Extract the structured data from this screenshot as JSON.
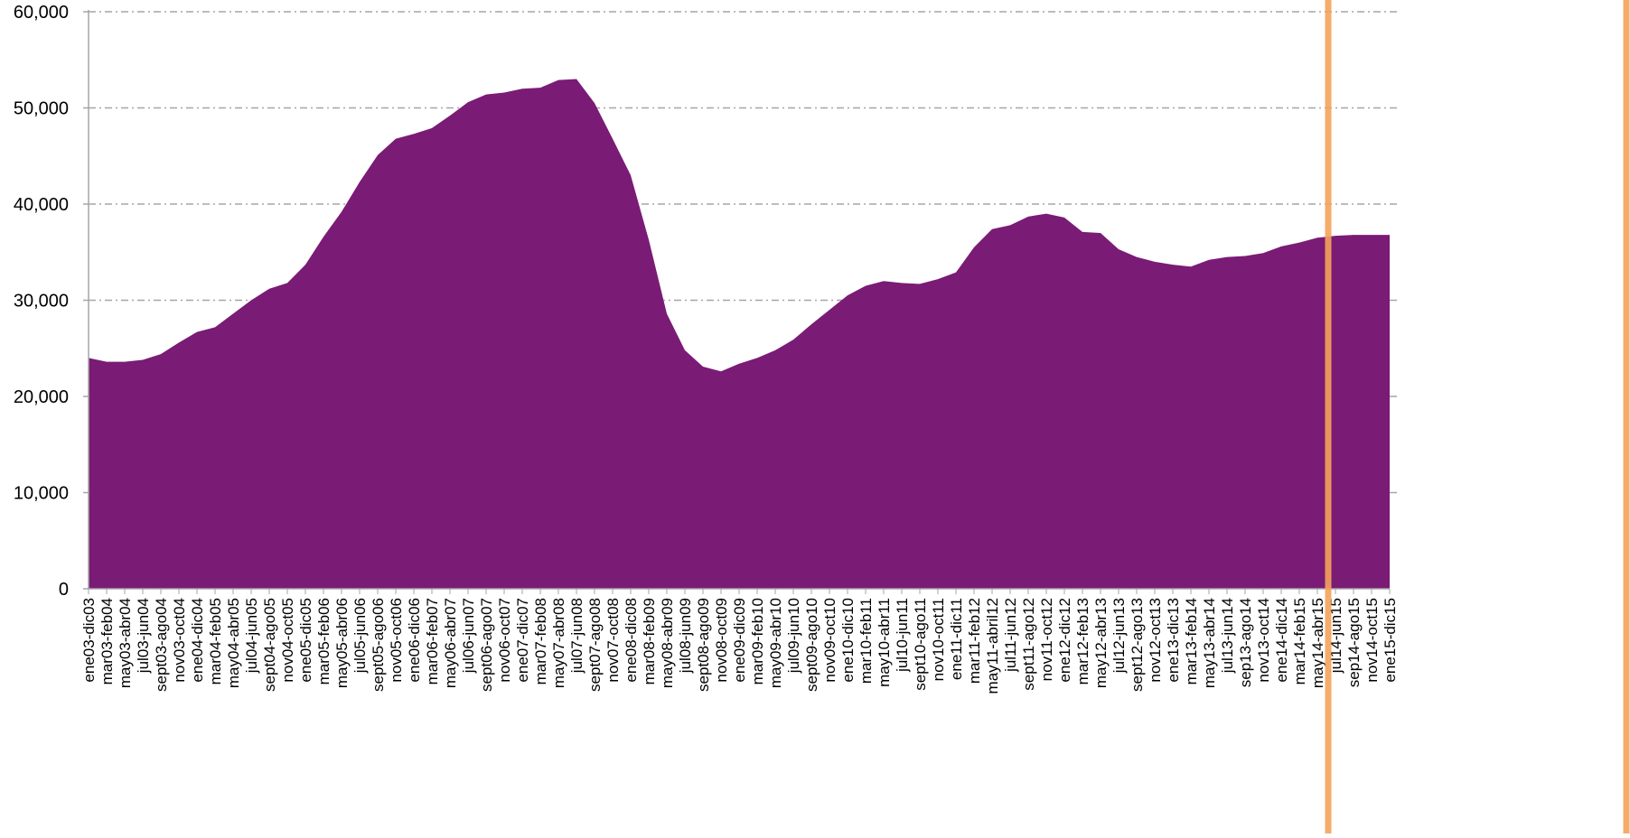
{
  "chart_data": {
    "type": "area",
    "title": "",
    "xlabel": "",
    "ylabel": "",
    "ylim": [
      0,
      60000
    ],
    "grid": true,
    "legend": "none",
    "y_ticks": [
      0,
      10000,
      20000,
      30000,
      40000,
      50000,
      60000
    ],
    "y_tick_labels": [
      "0",
      "10,000",
      "20,000",
      "30,000",
      "40,000",
      "50,000",
      "60,000"
    ],
    "colors": {
      "area": "#7a1b76",
      "gridline": "#a6a6a6",
      "axis": "#a6a6a6",
      "marker_line": "#f4a45c"
    },
    "categories": [
      "ene03-dic03",
      "mar03-feb04",
      "may03-abr04",
      "jul03-jun04",
      "sept03-ago04",
      "nov03-oct04",
      "ene04-dic04",
      "mar04-feb05",
      "may04-abr05",
      "jul04-jun05",
      "sept04-ago05",
      "nov04-oct05",
      "ene05-dic05",
      "mar05-feb06",
      "may05-abr06",
      "jul05-jun06",
      "sept05-ago06",
      "nov05-oct06",
      "ene06-dic06",
      "mar06-feb07",
      "may06-abr07",
      "jul06-jun07",
      "sept06-ago07",
      "nov06-oct07",
      "ene07-dic07",
      "mar07-feb08",
      "may07-abr08",
      "jul07-jun08",
      "sept07-ago08",
      "nov07-oct08",
      "ene08-dic08",
      "mar08-feb09",
      "may08-abr09",
      "jul08-jun09",
      "sept08-ago09",
      "nov08-oct09",
      "ene09-dic09",
      "mar09-feb10",
      "may09-abr10",
      "jul09-jun10",
      "sept09-ago10",
      "nov09-oct10",
      "ene10-dic10",
      "mar10-feb11",
      "may10-abr11",
      "jul10-jun11",
      "sept10-ago11",
      "nov10-oct11",
      "ene11-dic11",
      "mar11-feb12",
      "may11-abril12",
      "jul11-jun12",
      "sept11-ago12",
      "nov11-oct12",
      "ene12-dic12",
      "mar12-feb13",
      "may12-abr13",
      "jul12-jun13",
      "sept12-ago13",
      "nov12-oct13",
      "ene13-dic13",
      "mar13-feb14",
      "may13-abr14",
      "jul13-jun14",
      "sep13-ago14",
      "nov13-oct14",
      "ene14-dic14",
      "mar14-feb15",
      "may14-abr15",
      "jul14-jun15",
      "sep14-ago15",
      "nov14-oct15",
      "ene15-dic15"
    ],
    "values": [
      24000,
      23600,
      23600,
      23800,
      24400,
      25600,
      26700,
      27200,
      28600,
      30000,
      31200,
      31800,
      33700,
      36600,
      39200,
      42300,
      45100,
      46800,
      47300,
      47900,
      49200,
      50600,
      51400,
      51600,
      52000,
      52100,
      52900,
      53000,
      50500,
      46800,
      43000,
      36300,
      28600,
      24800,
      23100,
      22600,
      23400,
      24000,
      24800,
      25900,
      27500,
      29000,
      30500,
      31500,
      32000,
      31800,
      31700,
      32200,
      32900,
      35500,
      37400,
      37800,
      38700,
      39000,
      38600,
      37100,
      37000,
      35300,
      34500,
      34000,
      33700,
      33500,
      34200,
      34500,
      34600,
      34900,
      35600,
      36000,
      36500,
      36700,
      36800,
      36800,
      36800
    ],
    "vertical_marker_category_index": 68.6
  }
}
